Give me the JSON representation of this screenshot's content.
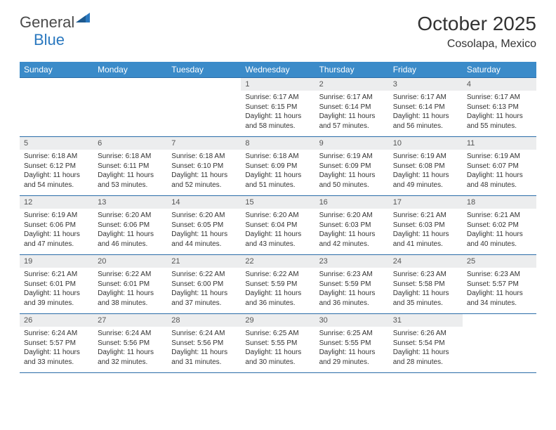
{
  "brand": {
    "part1": "General",
    "part2": "Blue"
  },
  "title": "October 2025",
  "location": "Cosolapa, Mexico",
  "colors": {
    "header_bg": "#3b8bc9",
    "row_border": "#2a6ca8",
    "daynum_bg": "#ecedee",
    "text": "#333333",
    "white": "#ffffff",
    "logo_blue": "#2a78bf"
  },
  "fonts": {
    "title_size": 28,
    "location_size": 16,
    "header_size": 12,
    "daynum_size": 11,
    "body_size": 10
  },
  "weekdays": [
    "Sunday",
    "Monday",
    "Tuesday",
    "Wednesday",
    "Thursday",
    "Friday",
    "Saturday"
  ],
  "weeks": [
    [
      null,
      null,
      null,
      {
        "n": "1",
        "sr": "Sunrise: 6:17 AM",
        "ss": "Sunset: 6:15 PM",
        "d1": "Daylight: 11 hours",
        "d2": "and 58 minutes."
      },
      {
        "n": "2",
        "sr": "Sunrise: 6:17 AM",
        "ss": "Sunset: 6:14 PM",
        "d1": "Daylight: 11 hours",
        "d2": "and 57 minutes."
      },
      {
        "n": "3",
        "sr": "Sunrise: 6:17 AM",
        "ss": "Sunset: 6:14 PM",
        "d1": "Daylight: 11 hours",
        "d2": "and 56 minutes."
      },
      {
        "n": "4",
        "sr": "Sunrise: 6:17 AM",
        "ss": "Sunset: 6:13 PM",
        "d1": "Daylight: 11 hours",
        "d2": "and 55 minutes."
      }
    ],
    [
      {
        "n": "5",
        "sr": "Sunrise: 6:18 AM",
        "ss": "Sunset: 6:12 PM",
        "d1": "Daylight: 11 hours",
        "d2": "and 54 minutes."
      },
      {
        "n": "6",
        "sr": "Sunrise: 6:18 AM",
        "ss": "Sunset: 6:11 PM",
        "d1": "Daylight: 11 hours",
        "d2": "and 53 minutes."
      },
      {
        "n": "7",
        "sr": "Sunrise: 6:18 AM",
        "ss": "Sunset: 6:10 PM",
        "d1": "Daylight: 11 hours",
        "d2": "and 52 minutes."
      },
      {
        "n": "8",
        "sr": "Sunrise: 6:18 AM",
        "ss": "Sunset: 6:09 PM",
        "d1": "Daylight: 11 hours",
        "d2": "and 51 minutes."
      },
      {
        "n": "9",
        "sr": "Sunrise: 6:19 AM",
        "ss": "Sunset: 6:09 PM",
        "d1": "Daylight: 11 hours",
        "d2": "and 50 minutes."
      },
      {
        "n": "10",
        "sr": "Sunrise: 6:19 AM",
        "ss": "Sunset: 6:08 PM",
        "d1": "Daylight: 11 hours",
        "d2": "and 49 minutes."
      },
      {
        "n": "11",
        "sr": "Sunrise: 6:19 AM",
        "ss": "Sunset: 6:07 PM",
        "d1": "Daylight: 11 hours",
        "d2": "and 48 minutes."
      }
    ],
    [
      {
        "n": "12",
        "sr": "Sunrise: 6:19 AM",
        "ss": "Sunset: 6:06 PM",
        "d1": "Daylight: 11 hours",
        "d2": "and 47 minutes."
      },
      {
        "n": "13",
        "sr": "Sunrise: 6:20 AM",
        "ss": "Sunset: 6:06 PM",
        "d1": "Daylight: 11 hours",
        "d2": "and 46 minutes."
      },
      {
        "n": "14",
        "sr": "Sunrise: 6:20 AM",
        "ss": "Sunset: 6:05 PM",
        "d1": "Daylight: 11 hours",
        "d2": "and 44 minutes."
      },
      {
        "n": "15",
        "sr": "Sunrise: 6:20 AM",
        "ss": "Sunset: 6:04 PM",
        "d1": "Daylight: 11 hours",
        "d2": "and 43 minutes."
      },
      {
        "n": "16",
        "sr": "Sunrise: 6:20 AM",
        "ss": "Sunset: 6:03 PM",
        "d1": "Daylight: 11 hours",
        "d2": "and 42 minutes."
      },
      {
        "n": "17",
        "sr": "Sunrise: 6:21 AM",
        "ss": "Sunset: 6:03 PM",
        "d1": "Daylight: 11 hours",
        "d2": "and 41 minutes."
      },
      {
        "n": "18",
        "sr": "Sunrise: 6:21 AM",
        "ss": "Sunset: 6:02 PM",
        "d1": "Daylight: 11 hours",
        "d2": "and 40 minutes."
      }
    ],
    [
      {
        "n": "19",
        "sr": "Sunrise: 6:21 AM",
        "ss": "Sunset: 6:01 PM",
        "d1": "Daylight: 11 hours",
        "d2": "and 39 minutes."
      },
      {
        "n": "20",
        "sr": "Sunrise: 6:22 AM",
        "ss": "Sunset: 6:01 PM",
        "d1": "Daylight: 11 hours",
        "d2": "and 38 minutes."
      },
      {
        "n": "21",
        "sr": "Sunrise: 6:22 AM",
        "ss": "Sunset: 6:00 PM",
        "d1": "Daylight: 11 hours",
        "d2": "and 37 minutes."
      },
      {
        "n": "22",
        "sr": "Sunrise: 6:22 AM",
        "ss": "Sunset: 5:59 PM",
        "d1": "Daylight: 11 hours",
        "d2": "and 36 minutes."
      },
      {
        "n": "23",
        "sr": "Sunrise: 6:23 AM",
        "ss": "Sunset: 5:59 PM",
        "d1": "Daylight: 11 hours",
        "d2": "and 36 minutes."
      },
      {
        "n": "24",
        "sr": "Sunrise: 6:23 AM",
        "ss": "Sunset: 5:58 PM",
        "d1": "Daylight: 11 hours",
        "d2": "and 35 minutes."
      },
      {
        "n": "25",
        "sr": "Sunrise: 6:23 AM",
        "ss": "Sunset: 5:57 PM",
        "d1": "Daylight: 11 hours",
        "d2": "and 34 minutes."
      }
    ],
    [
      {
        "n": "26",
        "sr": "Sunrise: 6:24 AM",
        "ss": "Sunset: 5:57 PM",
        "d1": "Daylight: 11 hours",
        "d2": "and 33 minutes."
      },
      {
        "n": "27",
        "sr": "Sunrise: 6:24 AM",
        "ss": "Sunset: 5:56 PM",
        "d1": "Daylight: 11 hours",
        "d2": "and 32 minutes."
      },
      {
        "n": "28",
        "sr": "Sunrise: 6:24 AM",
        "ss": "Sunset: 5:56 PM",
        "d1": "Daylight: 11 hours",
        "d2": "and 31 minutes."
      },
      {
        "n": "29",
        "sr": "Sunrise: 6:25 AM",
        "ss": "Sunset: 5:55 PM",
        "d1": "Daylight: 11 hours",
        "d2": "and 30 minutes."
      },
      {
        "n": "30",
        "sr": "Sunrise: 6:25 AM",
        "ss": "Sunset: 5:55 PM",
        "d1": "Daylight: 11 hours",
        "d2": "and 29 minutes."
      },
      {
        "n": "31",
        "sr": "Sunrise: 6:26 AM",
        "ss": "Sunset: 5:54 PM",
        "d1": "Daylight: 11 hours",
        "d2": "and 28 minutes."
      },
      null
    ]
  ]
}
